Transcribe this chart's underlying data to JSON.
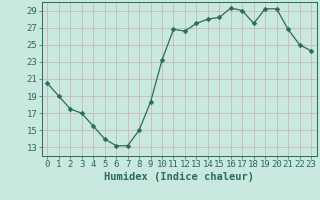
{
  "x": [
    0,
    1,
    2,
    3,
    4,
    5,
    6,
    7,
    8,
    9,
    10,
    11,
    12,
    13,
    14,
    15,
    16,
    17,
    18,
    19,
    20,
    21,
    22,
    23
  ],
  "y": [
    20.5,
    19.0,
    17.5,
    17.0,
    15.5,
    14.0,
    13.2,
    13.2,
    15.0,
    18.3,
    23.2,
    26.8,
    26.6,
    27.5,
    28.0,
    28.2,
    29.3,
    29.0,
    27.5,
    29.2,
    29.2,
    26.8,
    25.0,
    24.3
  ],
  "line_color": "#2a6b5a",
  "marker": "D",
  "marker_size": 2.5,
  "bg_color": "#c8e8e0",
  "grid_color_v": "#c8b8b8",
  "grid_color_h": "#c8b8b8",
  "xlabel": "Humidex (Indice chaleur)",
  "xlim": [
    -0.5,
    23.5
  ],
  "ylim": [
    12.0,
    30.0
  ],
  "yticks": [
    13,
    15,
    17,
    19,
    21,
    23,
    25,
    27,
    29
  ],
  "xticks": [
    0,
    1,
    2,
    3,
    4,
    5,
    6,
    7,
    8,
    9,
    10,
    11,
    12,
    13,
    14,
    15,
    16,
    17,
    18,
    19,
    20,
    21,
    22,
    23
  ],
  "font_color": "#2a6b5a",
  "tick_font_size": 6.5,
  "xlabel_font_size": 7.5
}
